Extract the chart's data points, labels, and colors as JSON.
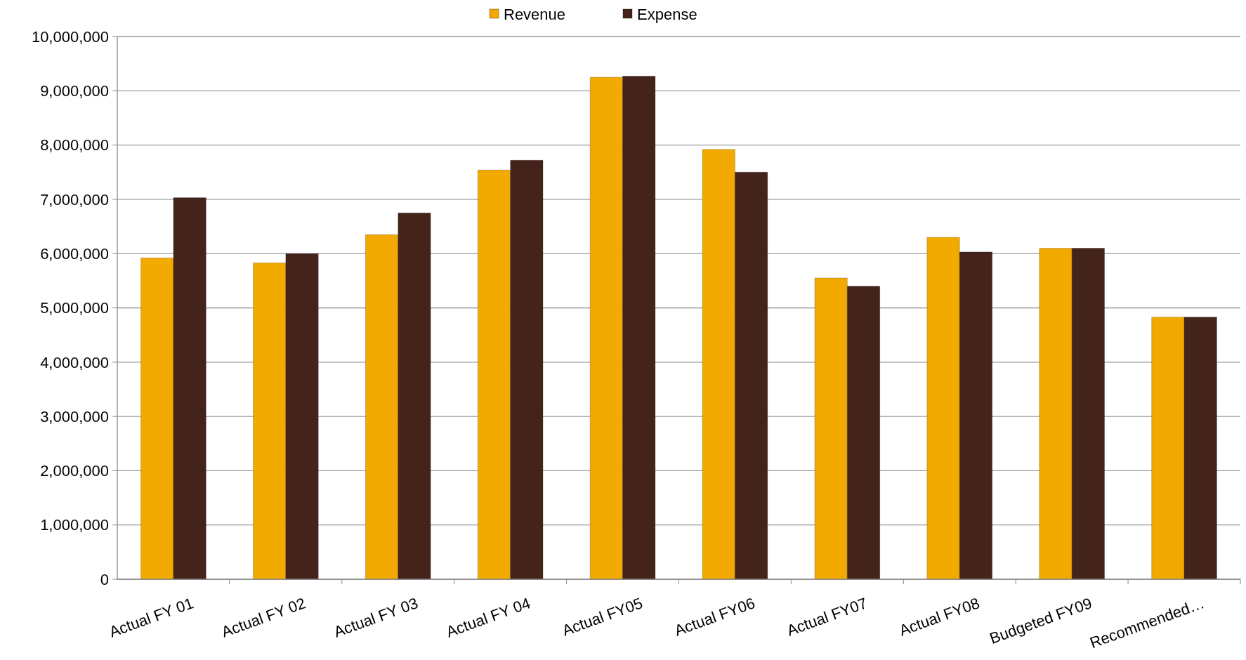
{
  "chart_data": {
    "type": "bar",
    "categories": [
      "Actual FY 01",
      "Actual FY 02",
      "Actual FY 03",
      "Actual FY 04",
      "Actual FY05",
      "Actual FY06",
      "Actual FY07",
      "Actual FY08",
      "Budgeted FY09",
      "Recommended…"
    ],
    "series": [
      {
        "name": "Revenue",
        "color": "#f2a900",
        "values": [
          5920000,
          5830000,
          6350000,
          7540000,
          9250000,
          7920000,
          5550000,
          6300000,
          6100000,
          4830000
        ]
      },
      {
        "name": "Expense",
        "color": "#44231b",
        "values": [
          7030000,
          6000000,
          6750000,
          7720000,
          9270000,
          7500000,
          5400000,
          6030000,
          6100000,
          4830000
        ]
      }
    ],
    "ylim": [
      0,
      10000000
    ],
    "yticks": [
      {
        "value": 0,
        "label": "0"
      },
      {
        "value": 1000000,
        "label": "1,000,000"
      },
      {
        "value": 2000000,
        "label": "2,000,000"
      },
      {
        "value": 3000000,
        "label": "3,000,000"
      },
      {
        "value": 4000000,
        "label": "4,000,000"
      },
      {
        "value": 5000000,
        "label": "5,000,000"
      },
      {
        "value": 6000000,
        "label": "6,000,000"
      },
      {
        "value": 7000000,
        "label": "7,000,000"
      },
      {
        "value": 8000000,
        "label": "8,000,000"
      },
      {
        "value": 9000000,
        "label": "9,000,000"
      },
      {
        "value": 10000000,
        "label": "10,000,000"
      }
    ],
    "grid": "y",
    "legend": "top"
  }
}
